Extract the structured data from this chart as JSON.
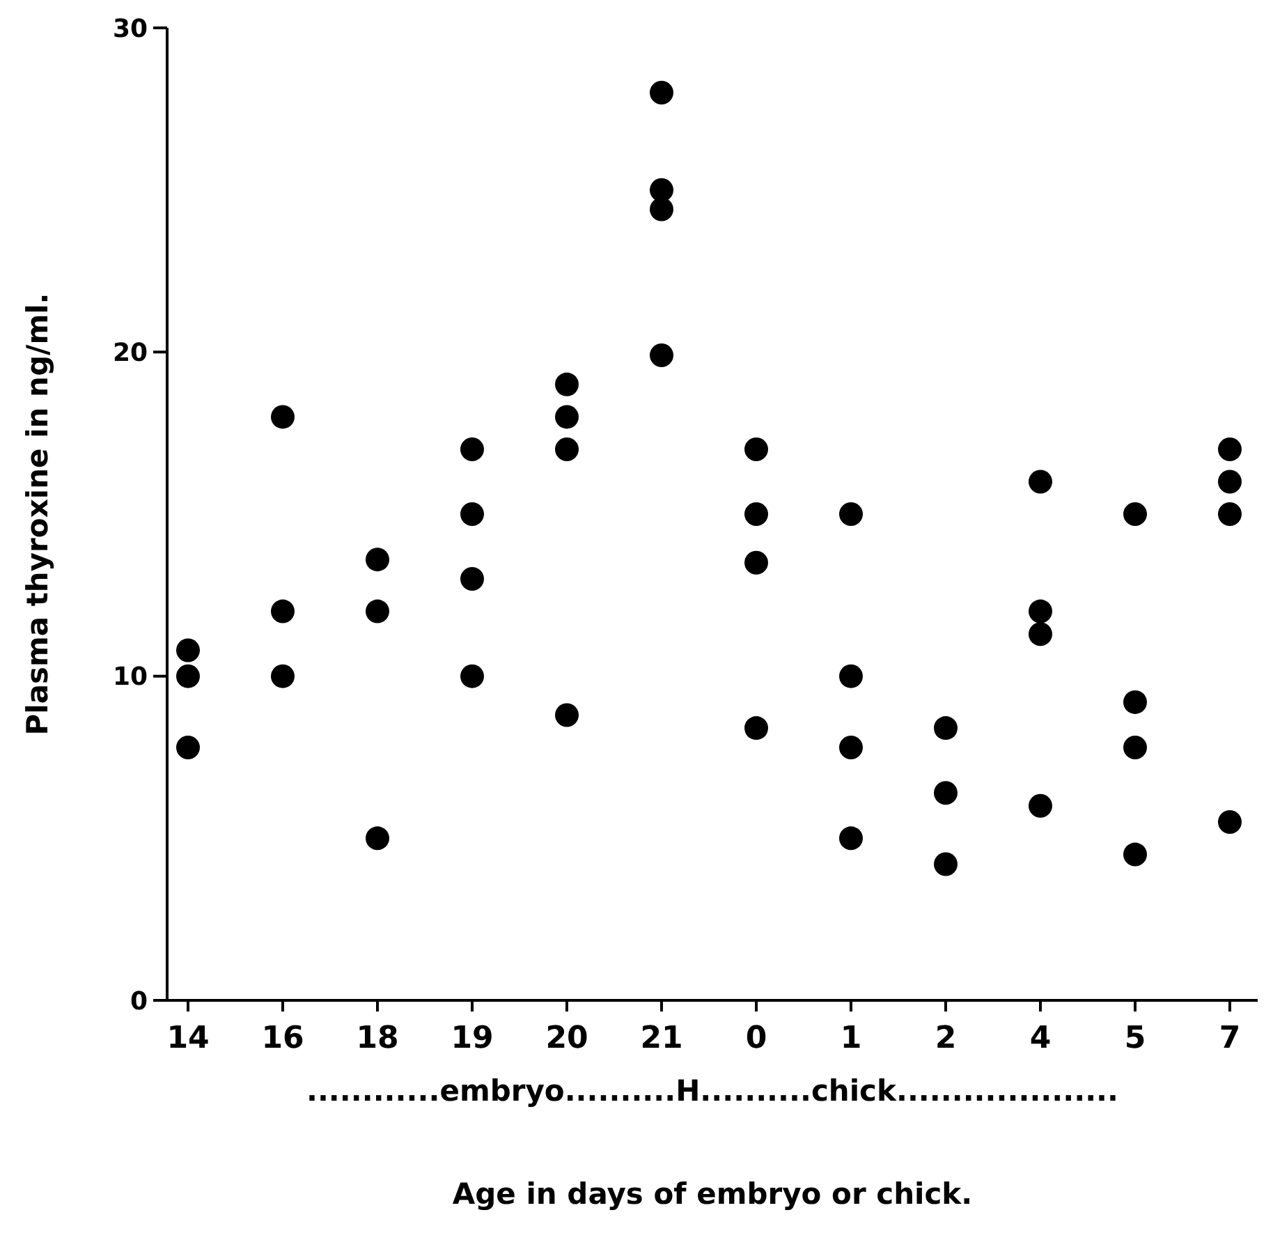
{
  "chart_data": {
    "type": "scatter",
    "xlabel": "Age in days of embryo or chick.",
    "ylabel": "Plasma thyroxine in ng/ml.",
    "categories": [
      "14",
      "16",
      "18",
      "19",
      "20",
      "21",
      "0",
      "1",
      "2",
      "4",
      "5",
      "7"
    ],
    "ylim": [
      0,
      30
    ],
    "yticks": [
      0,
      10,
      20,
      30
    ],
    "grid": false,
    "marker": "circle",
    "annotations": [
      "............embryo..........H..........chick...................."
    ],
    "series": [
      {
        "color": "#000000",
        "x": [
          "14",
          "14",
          "14",
          "16",
          "16",
          "16",
          "18",
          "18",
          "18",
          "19",
          "19",
          "19",
          "19",
          "20",
          "20",
          "20",
          "20",
          "21",
          "21",
          "21",
          "21",
          "0",
          "0",
          "0",
          "0",
          "1",
          "1",
          "1",
          "1",
          "2",
          "2",
          "2",
          "4",
          "4",
          "4",
          "4",
          "5",
          "5",
          "5",
          "5",
          "7",
          "7",
          "7",
          "7"
        ],
        "values": [
          10.8,
          10,
          7.8,
          18,
          12,
          10,
          13.6,
          12,
          5,
          17,
          15,
          13,
          10,
          19,
          18,
          17,
          8.8,
          28,
          25,
          24.4,
          19.9,
          17,
          15,
          13.5,
          8.4,
          15,
          10,
          7.8,
          5,
          8.4,
          6.4,
          4.2,
          16,
          12,
          11.3,
          6,
          15,
          9.2,
          7.8,
          4.5,
          17,
          16,
          15,
          5.5
        ]
      }
    ]
  }
}
